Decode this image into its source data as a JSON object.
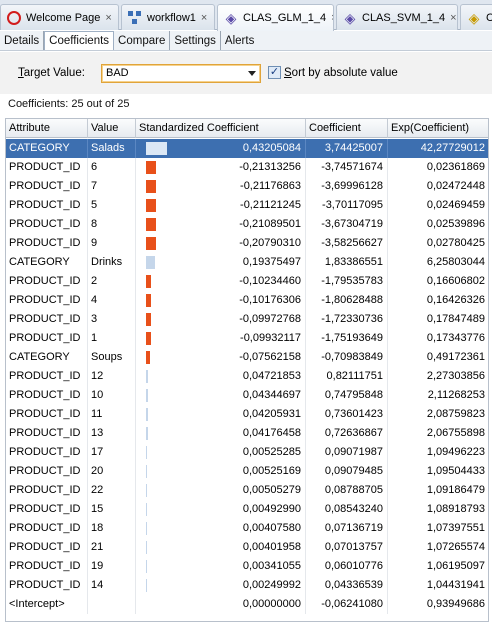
{
  "editor_tabs": [
    {
      "label": "Welcome Page",
      "icon": "oracle-icon",
      "closable": true,
      "active": false
    },
    {
      "label": "workflow1",
      "icon": "workflow-icon",
      "closable": true,
      "active": false
    },
    {
      "label": "CLAS_GLM_1_4",
      "icon": "model-icon",
      "closable": true,
      "active": true
    },
    {
      "label": "CLAS_SVM_1_4",
      "icon": "model-icon",
      "closable": true,
      "active": false
    },
    {
      "label": "CL",
      "icon": "model-yellow-icon",
      "closable": false,
      "active": false
    }
  ],
  "sub_tabs": [
    {
      "label": "Details",
      "active": false
    },
    {
      "label": "Coefficients",
      "active": true
    },
    {
      "label": "Compare",
      "active": false
    },
    {
      "label": "Settings",
      "active": false
    },
    {
      "label": "Alerts",
      "active": false
    }
  ],
  "target": {
    "label_prefix": "",
    "label_mnemonic": "T",
    "label_rest": "arget Value:",
    "value": "BAD"
  },
  "sort": {
    "checked": true,
    "label_mnemonic": "S",
    "label_rest": "ort by absolute value"
  },
  "coef_count": "Coefficients: 25 out of 25",
  "columns": [
    "Attribute",
    "Value",
    "Standardized Coefficient",
    "Coefficient",
    "Exp(Coefficient)"
  ],
  "colors": {
    "selected_row": "#3d6fb0",
    "positive_bar": "#c5d6ea",
    "negative_bar": "#e8501a"
  },
  "rows": [
    {
      "attribute": "CATEGORY",
      "value": "Salads",
      "std": "0,43205084",
      "std_num": 0.43205084,
      "coef": "3,74425007",
      "exp": "42,27729012",
      "selected": true
    },
    {
      "attribute": "PRODUCT_ID",
      "value": "6",
      "std": "-0,21313256",
      "std_num": -0.21313256,
      "coef": "-3,74571674",
      "exp": "0,02361869"
    },
    {
      "attribute": "PRODUCT_ID",
      "value": "7",
      "std": "-0,21176863",
      "std_num": -0.21176863,
      "coef": "-3,69996128",
      "exp": "0,02472448"
    },
    {
      "attribute": "PRODUCT_ID",
      "value": "5",
      "std": "-0,21121245",
      "std_num": -0.21121245,
      "coef": "-3,70117095",
      "exp": "0,02469459"
    },
    {
      "attribute": "PRODUCT_ID",
      "value": "8",
      "std": "-0,21089501",
      "std_num": -0.21089501,
      "coef": "-3,67304719",
      "exp": "0,02539896"
    },
    {
      "attribute": "PRODUCT_ID",
      "value": "9",
      "std": "-0,20790310",
      "std_num": -0.2079031,
      "coef": "-3,58256627",
      "exp": "0,02780425"
    },
    {
      "attribute": "CATEGORY",
      "value": "Drinks",
      "std": "0,19375497",
      "std_num": 0.19375497,
      "coef": "1,83386551",
      "exp": "6,25803044"
    },
    {
      "attribute": "PRODUCT_ID",
      "value": "2",
      "std": "-0,10234460",
      "std_num": -0.1023446,
      "coef": "-1,79535783",
      "exp": "0,16606802"
    },
    {
      "attribute": "PRODUCT_ID",
      "value": "4",
      "std": "-0,10176306",
      "std_num": -0.10176306,
      "coef": "-1,80628488",
      "exp": "0,16426326"
    },
    {
      "attribute": "PRODUCT_ID",
      "value": "3",
      "std": "-0,09972768",
      "std_num": -0.09972768,
      "coef": "-1,72330736",
      "exp": "0,17847489"
    },
    {
      "attribute": "PRODUCT_ID",
      "value": "1",
      "std": "-0,09932117",
      "std_num": -0.09932117,
      "coef": "-1,75193649",
      "exp": "0,17343776"
    },
    {
      "attribute": "CATEGORY",
      "value": "Soups",
      "std": "-0,07562158",
      "std_num": -0.07562158,
      "coef": "-0,70983849",
      "exp": "0,49172361"
    },
    {
      "attribute": "PRODUCT_ID",
      "value": "12",
      "std": "0,04721853",
      "std_num": 0.04721853,
      "coef": "0,82111751",
      "exp": "2,27303856"
    },
    {
      "attribute": "PRODUCT_ID",
      "value": "10",
      "std": "0,04344697",
      "std_num": 0.04344697,
      "coef": "0,74795848",
      "exp": "2,11268253"
    },
    {
      "attribute": "PRODUCT_ID",
      "value": "11",
      "std": "0,04205931",
      "std_num": 0.04205931,
      "coef": "0,73601423",
      "exp": "2,08759823"
    },
    {
      "attribute": "PRODUCT_ID",
      "value": "13",
      "std": "0,04176458",
      "std_num": 0.04176458,
      "coef": "0,72636867",
      "exp": "2,06755898"
    },
    {
      "attribute": "PRODUCT_ID",
      "value": "17",
      "std": "0,00525285",
      "std_num": 0.00525285,
      "coef": "0,09071987",
      "exp": "1,09496223"
    },
    {
      "attribute": "PRODUCT_ID",
      "value": "20",
      "std": "0,00525169",
      "std_num": 0.00525169,
      "coef": "0,09079485",
      "exp": "1,09504433"
    },
    {
      "attribute": "PRODUCT_ID",
      "value": "22",
      "std": "0,00505279",
      "std_num": 0.00505279,
      "coef": "0,08788705",
      "exp": "1,09186479"
    },
    {
      "attribute": "PRODUCT_ID",
      "value": "15",
      "std": "0,00492990",
      "std_num": 0.0049299,
      "coef": "0,08543240",
      "exp": "1,08918793"
    },
    {
      "attribute": "PRODUCT_ID",
      "value": "18",
      "std": "0,00407580",
      "std_num": 0.0040758,
      "coef": "0,07136719",
      "exp": "1,07397551"
    },
    {
      "attribute": "PRODUCT_ID",
      "value": "21",
      "std": "0,00401958",
      "std_num": 0.00401958,
      "coef": "0,07013757",
      "exp": "1,07265574"
    },
    {
      "attribute": "PRODUCT_ID",
      "value": "19",
      "std": "0,00341055",
      "std_num": 0.00341055,
      "coef": "0,06010776",
      "exp": "1,06195097"
    },
    {
      "attribute": "PRODUCT_ID",
      "value": "14",
      "std": "0,00249992",
      "std_num": 0.00249992,
      "coef": "0,04336539",
      "exp": "1,04431941"
    },
    {
      "attribute": "<Intercept>",
      "value": "",
      "std": "0,00000000",
      "std_num": 0,
      "coef": "-0,06241080",
      "exp": "0,93949686"
    }
  ]
}
